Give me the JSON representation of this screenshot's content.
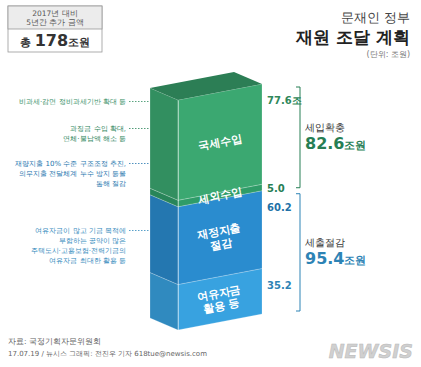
{
  "chart_data": {
    "type": "bar",
    "stacked": true,
    "data_labels": true,
    "tick_labels": false,
    "grid": false,
    "subtitle": "문재인 정부",
    "title": "재원 조달 계획",
    "unit": "(단위: 조원)",
    "categories": [
      null
    ],
    "ylim": [
      0,
      178
    ],
    "series": [
      {
        "name": "여유자금 활용 등",
        "color": "#38a2e0",
        "values": [
          35.2
        ],
        "note": [
          "여유자금이 많고 기금 목적에",
          "부합하는 공약이 많은",
          "주택도시·고용보험·전력기금의",
          "여유자금 최대한 활용 등"
        ]
      },
      {
        "name": "재정지출 절감",
        "color": "#2a8ccf",
        "values": [
          60.2
        ],
        "note": [
          "재량지출 10% 수준 구조조정 추진,",
          "의무지출 전달체계 누수 방지 등을",
          "통해 절감"
        ]
      },
      {
        "name": "세외수입",
        "color": "#2f9c68",
        "values": [
          5.0
        ],
        "value_labels": [
          "5.0"
        ],
        "note": [
          "과징금 수입 확대,",
          "연체·불납액 해소 등"
        ]
      },
      {
        "name": "국세수입",
        "color": "#3ba871",
        "values": [
          77.6
        ],
        "value_labels": [
          "77.6조"
        ],
        "note": [
          "비과세·감면 정비과세기반 확대 등"
        ]
      }
    ],
    "groups": [
      {
        "name": "세입확충",
        "members": [
          "국세수입",
          "세외수입"
        ],
        "value": 82.6,
        "value_label": "82.6조원"
      },
      {
        "name": "세출절감",
        "members": [
          "재정지출 절감",
          "여유자금 활용 등"
        ],
        "value": 95.4,
        "value_label": "95.4조원"
      }
    ],
    "total": {
      "label": [
        "2017년 대비",
        "5년간 추가 금액"
      ],
      "value": 178,
      "value_label": "총 178조원"
    },
    "source": "자료: 국정기획자문위원회",
    "credit": "17.07.19 / 뉴시스 그래픽: 전진우 기자 618tue@newsis.com",
    "logo": "NEWSIS"
  }
}
